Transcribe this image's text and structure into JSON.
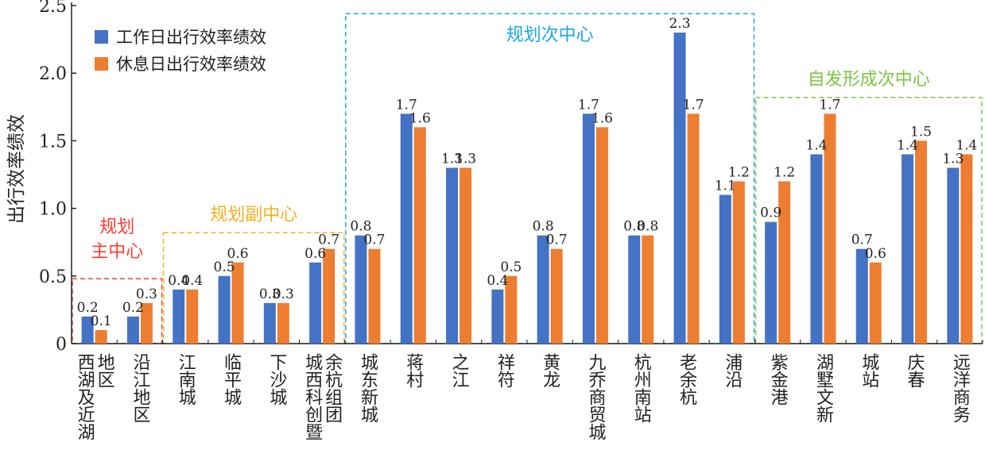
{
  "chart_data": {
    "type": "bar",
    "ylabel": "出行效率绩效",
    "ylim": [
      0,
      2.5
    ],
    "yticks": [
      "0",
      "0.5",
      "1.0",
      "1.5",
      "2.0",
      "2.5"
    ],
    "legend_position": "top-left",
    "categories": [
      [
        "西湖及近湖",
        "地区"
      ],
      [
        "沿江地区"
      ],
      [
        "江南城"
      ],
      [
        "临平城"
      ],
      [
        "下沙城"
      ],
      [
        "城西科创暨",
        "余杭组团"
      ],
      [
        "城东新城"
      ],
      [
        "蒋村"
      ],
      [
        "之江"
      ],
      [
        "祥符"
      ],
      [
        "黄龙"
      ],
      [
        "九乔商贸城"
      ],
      [
        "杭州南站"
      ],
      [
        "老余杭"
      ],
      [
        "浦沿"
      ],
      [
        "紫金港"
      ],
      [
        "湖墅文新"
      ],
      [
        "城站"
      ],
      [
        "庆春"
      ],
      [
        "远洋商务"
      ]
    ],
    "series": [
      {
        "name": "工作日出行效率绩效",
        "color": "#4472C4",
        "values": [
          0.2,
          0.2,
          0.4,
          0.5,
          0.3,
          0.6,
          0.8,
          1.7,
          1.3,
          0.4,
          0.8,
          1.7,
          0.8,
          2.3,
          1.1,
          0.9,
          1.4,
          0.7,
          1.4,
          1.3
        ],
        "labels": [
          "0.2",
          "0.2",
          "0.4",
          "0.5",
          "0.3",
          "0.6",
          "0.8",
          "1.7",
          "1.3",
          "0.4",
          "0.8",
          "1.7",
          "0.8",
          "2.3",
          "1.1",
          "0.9",
          "1.4",
          "0.7",
          "1.4",
          "1.3"
        ]
      },
      {
        "name": "休息日出行效率绩效",
        "color": "#ED7D31",
        "values": [
          0.1,
          0.3,
          0.4,
          0.6,
          0.3,
          0.7,
          0.7,
          1.6,
          1.3,
          0.5,
          0.7,
          1.6,
          0.8,
          1.7,
          1.2,
          1.2,
          1.7,
          0.6,
          1.5,
          1.4
        ],
        "labels": [
          "0.1",
          "0.3",
          "0.4",
          "0.6",
          "0.3",
          "0.7",
          "0.7",
          "1.6",
          "1.3",
          "0.5",
          "0.7",
          "1.6",
          "0.8",
          "1.7",
          "1.2",
          "1.2",
          "1.7",
          "0.6",
          "1.5",
          "1.4"
        ]
      }
    ],
    "groups": [
      {
        "label": [
          "规划",
          "主中心"
        ],
        "color": "#FF3B30",
        "from": 0,
        "to": 1,
        "top": 0.48
      },
      {
        "label": [
          "规划副中心"
        ],
        "color": "#F2B01E",
        "from": 2,
        "to": 5,
        "top": 0.82
      },
      {
        "label": [
          "规划次中心"
        ],
        "color": "#1AA7E0",
        "from": 6,
        "to": 14,
        "top": 2.44
      },
      {
        "label": [
          "自发形成次中心"
        ],
        "color": "#7CC544",
        "from": 15,
        "to": 19,
        "top": 1.82
      }
    ]
  }
}
